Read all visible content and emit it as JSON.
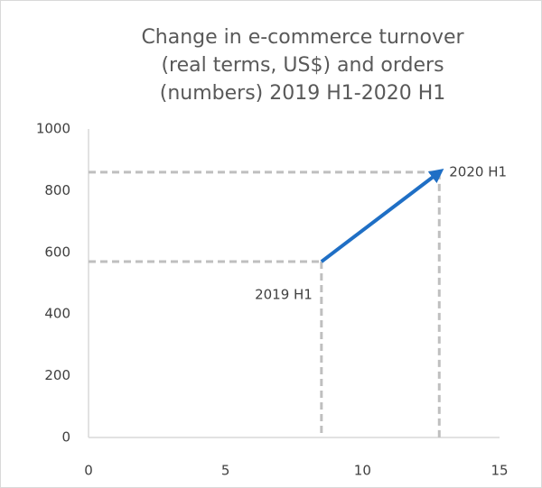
{
  "chart_data": {
    "type": "line",
    "title": [
      "Change in e-commerce turnover",
      "(real terms, US$) and orders",
      "(numbers) 2019 H1-2020 H1"
    ],
    "x": [
      8.5,
      12.8
    ],
    "values": [
      570,
      860
    ],
    "point_labels": [
      "2019 H1",
      "2020 H1"
    ],
    "color": "#1f6fc5",
    "drop_line_color": "#bfbfbf",
    "xlim": [
      0,
      15
    ],
    "xticks": [
      0,
      5,
      10,
      15
    ],
    "ylim": [
      0,
      1000
    ],
    "yticks": [
      0,
      200,
      400,
      600,
      800,
      1000
    ],
    "grid": false
  }
}
